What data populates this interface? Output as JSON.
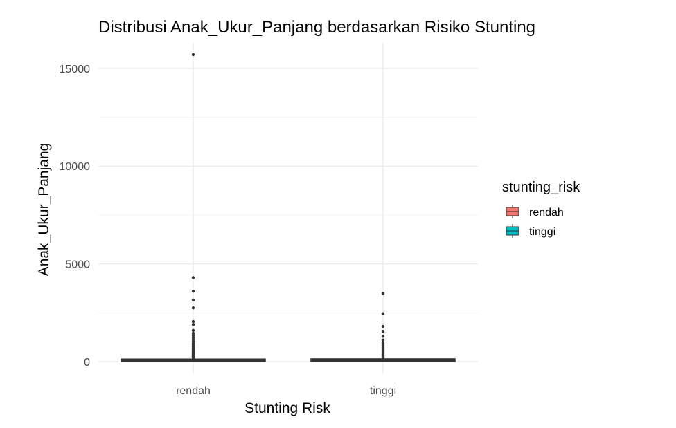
{
  "chart_data": {
    "type": "boxplot",
    "title": "Distribusi Anak_Ukur_Panjang berdasarkan Risiko Stunting",
    "xlabel": "Stunting Risk",
    "ylabel": "Anak_Ukur_Panjang",
    "categories": [
      "rendah",
      "tinggi"
    ],
    "yticks": [
      0,
      5000,
      10000,
      15000
    ],
    "ylim": [
      -600,
      16300
    ],
    "grid": true,
    "legend": {
      "title": "stunting_risk",
      "position": "right",
      "entries": [
        {
          "label": "rendah",
          "color": "#F8766D"
        },
        {
          "label": "tinggi",
          "color": "#00BFC4"
        }
      ]
    },
    "boxes": [
      {
        "category": "rendah",
        "color": "#F8766D",
        "whisker_low": 0,
        "q1": 40,
        "median": 65,
        "q3": 90,
        "whisker_high": 160,
        "outliers": [
          15700,
          4300,
          3600,
          3150,
          2750,
          2050,
          1900,
          1600,
          1450,
          1350,
          1250,
          1150,
          1050,
          950,
          850,
          760,
          680,
          600,
          530,
          470,
          420,
          370,
          330,
          290,
          250,
          220,
          200
        ]
      },
      {
        "category": "tinggi",
        "color": "#00BFC4",
        "whisker_low": 0,
        "q1": 50,
        "median": 75,
        "q3": 100,
        "whisker_high": 170,
        "outliers": [
          3480,
          2450,
          1800,
          1550,
          1300,
          1100,
          950,
          850,
          750,
          650,
          570,
          500,
          440,
          380,
          330,
          280,
          240,
          210
        ]
      }
    ]
  }
}
